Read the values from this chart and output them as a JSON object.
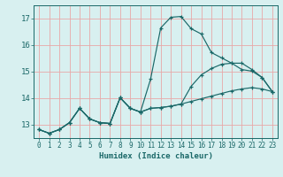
{
  "title": "",
  "xlabel": "Humidex (Indice chaleur)",
  "xlim": [
    -0.5,
    23.5
  ],
  "ylim": [
    12.5,
    17.5
  ],
  "xticks": [
    0,
    1,
    2,
    3,
    4,
    5,
    6,
    7,
    8,
    9,
    10,
    11,
    12,
    13,
    14,
    15,
    16,
    17,
    18,
    19,
    20,
    21,
    22,
    23
  ],
  "yticks": [
    13,
    14,
    15,
    16,
    17
  ],
  "background_color": "#d8f0f0",
  "grid_color": "#e8a8a8",
  "line_color": "#1a6868",
  "lines": [
    {
      "x": [
        0,
        1,
        2,
        3,
        4,
        5,
        6,
        7,
        8,
        9,
        10,
        11,
        12,
        13,
        14,
        15,
        16,
        17,
        18,
        19,
        20,
        21,
        22,
        23
      ],
      "y": [
        12.82,
        12.68,
        12.82,
        13.08,
        13.62,
        13.22,
        13.08,
        13.05,
        14.02,
        13.62,
        13.48,
        14.72,
        16.65,
        17.05,
        17.08,
        16.62,
        16.42,
        15.72,
        15.52,
        15.32,
        15.08,
        15.02,
        14.78,
        14.25
      ]
    },
    {
      "x": [
        0,
        1,
        2,
        3,
        4,
        5,
        6,
        7,
        8,
        9,
        10,
        11,
        12,
        13,
        14,
        15,
        16,
        17,
        18,
        19,
        20,
        21,
        22,
        23
      ],
      "y": [
        12.82,
        12.68,
        12.82,
        13.08,
        13.62,
        13.22,
        13.08,
        13.05,
        14.02,
        13.62,
        13.48,
        13.62,
        13.65,
        13.7,
        13.78,
        14.45,
        14.88,
        15.12,
        15.28,
        15.32,
        15.32,
        15.08,
        14.78,
        14.25
      ]
    },
    {
      "x": [
        0,
        1,
        2,
        3,
        4,
        5,
        6,
        7,
        8,
        9,
        10,
        11,
        12,
        13,
        14,
        15,
        16,
        17,
        18,
        19,
        20,
        21,
        22,
        23
      ],
      "y": [
        12.82,
        12.68,
        12.82,
        13.08,
        13.62,
        13.22,
        13.08,
        13.05,
        14.02,
        13.62,
        13.48,
        13.62,
        13.65,
        13.7,
        13.78,
        13.88,
        13.98,
        14.08,
        14.18,
        14.28,
        14.35,
        14.4,
        14.35,
        14.25
      ]
    }
  ]
}
